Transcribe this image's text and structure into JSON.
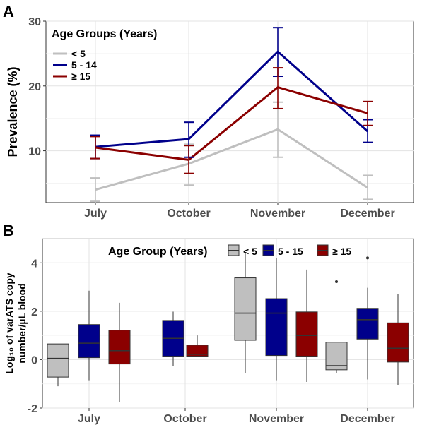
{
  "chart_data": [
    {
      "panel_label": "A",
      "type": "line",
      "ylabel": "Prevalence (%)",
      "categories": [
        "July",
        "October",
        "November",
        "December"
      ],
      "ylim": [
        2,
        30
      ],
      "yticks": [
        10,
        20,
        30
      ],
      "grid": true,
      "legend": {
        "title": "Age Groups (Years)",
        "placement": "top-left"
      },
      "series": [
        {
          "name": "< 5",
          "color": "#bfbfbf",
          "values": [
            4.0,
            8.0,
            13.3,
            4.3
          ],
          "err_low": [
            2.2,
            4.7,
            9.0,
            2.5
          ],
          "err_high": [
            5.8,
            11.0,
            17.5,
            6.2
          ]
        },
        {
          "name": "5 - 14",
          "color": "#00008b",
          "values": [
            10.6,
            11.8,
            25.3,
            13.0
          ],
          "err_low": [
            8.8,
            9.0,
            21.5,
            11.3
          ],
          "err_high": [
            12.4,
            14.4,
            29.0,
            14.8
          ]
        },
        {
          "name": "≥ 15",
          "color": "#8b0000",
          "values": [
            10.5,
            8.6,
            19.8,
            15.8
          ],
          "err_low": [
            8.8,
            6.5,
            16.5,
            13.9
          ],
          "err_high": [
            12.2,
            10.8,
            22.8,
            17.6
          ]
        }
      ]
    },
    {
      "panel_label": "B",
      "type": "box",
      "ylabel_line1": "Log₁₀ of varATS copy",
      "ylabel_line2": "number/µL blood",
      "categories": [
        "July",
        "October",
        "November",
        "December"
      ],
      "ylim": [
        -2,
        5
      ],
      "yticks": [
        -2,
        0,
        2,
        4
      ],
      "grid": true,
      "legend": {
        "title": "Age Group (Years)",
        "placement": "top-center"
      },
      "series": [
        {
          "name": "< 5",
          "color": "#bfbfbf",
          "boxes": [
            {
              "min": -1.1,
              "q1": -0.72,
              "median": 0.05,
              "q3": 0.65,
              "max": 0.65,
              "outliers": []
            },
            null,
            {
              "min": -0.55,
              "q1": 0.8,
              "median": 1.92,
              "q3": 3.38,
              "max": 4.4,
              "outliers": []
            },
            {
              "min": -0.55,
              "q1": -0.42,
              "median": -0.25,
              "q3": 0.72,
              "max": 0.72,
              "outliers": [
                3.22
              ]
            }
          ]
        },
        {
          "name": "5 - 15",
          "color": "#00008b",
          "boxes": [
            {
              "min": -0.85,
              "q1": 0.08,
              "median": 0.68,
              "q3": 1.45,
              "max": 2.85,
              "outliers": []
            },
            {
              "min": -0.25,
              "q1": 0.14,
              "median": 0.88,
              "q3": 1.62,
              "max": 1.98,
              "outliers": []
            },
            {
              "min": -0.85,
              "q1": 0.17,
              "median": 1.92,
              "q3": 2.52,
              "max": 4.2,
              "outliers": []
            },
            {
              "min": -0.82,
              "q1": 0.85,
              "median": 1.65,
              "q3": 2.12,
              "max": 2.97,
              "outliers": [
                4.2
              ]
            }
          ]
        },
        {
          "name": "≥ 15",
          "color": "#8b0000",
          "boxes": [
            {
              "min": -1.75,
              "q1": -0.18,
              "median": 0.37,
              "q3": 1.22,
              "max": 2.35,
              "outliers": []
            },
            {
              "min": 0.14,
              "q1": 0.14,
              "median": 0.22,
              "q3": 0.6,
              "max": 1.0,
              "outliers": []
            },
            {
              "min": -0.92,
              "q1": 0.14,
              "median": 1.0,
              "q3": 1.97,
              "max": 3.72,
              "outliers": []
            },
            {
              "min": -1.05,
              "q1": -0.1,
              "median": 0.47,
              "q3": 1.52,
              "max": 2.72,
              "outliers": []
            }
          ]
        }
      ]
    }
  ]
}
